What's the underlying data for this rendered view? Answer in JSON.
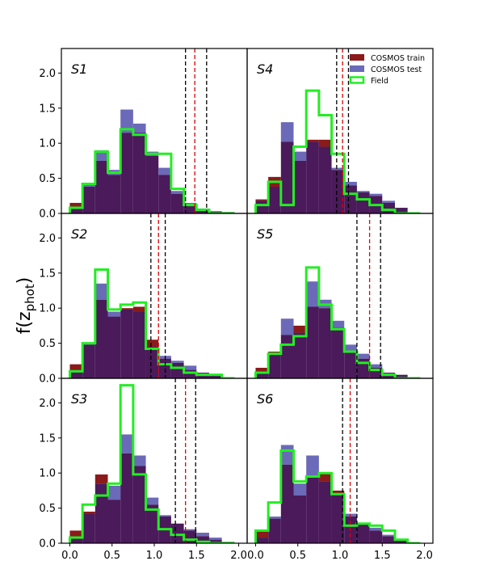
{
  "figure": {
    "ylabel": "f(z",
    "ylabel_sub": "phot",
    "ylabel_close": ")"
  },
  "legend": [
    {
      "label": "COSMOS train",
      "color": "#8b1a1a",
      "style": "fill"
    },
    {
      "label": "COSMOS test",
      "color": "#6a6ab8",
      "style": "fill"
    },
    {
      "label": "Field",
      "color": "#22ee22",
      "style": "step"
    }
  ],
  "chart_data": {
    "type": "histogram-grid",
    "xlim": [
      -0.1,
      2.1
    ],
    "ylim": [
      0,
      2.35
    ],
    "xticks": [
      "0.0",
      "0.5",
      "1.0",
      "1.5",
      "2.0"
    ],
    "yticks": [
      "0.0",
      "0.5",
      "1.0",
      "1.5",
      "2.0"
    ],
    "bin_edges": [
      0.0,
      0.15,
      0.3,
      0.45,
      0.6,
      0.75,
      0.9,
      1.05,
      1.2,
      1.35,
      1.5,
      1.65,
      1.8,
      1.95
    ],
    "colors": {
      "train": "#8b1a1a",
      "test": "#6a6ab8",
      "overlap": "#4a1a5a",
      "field": "#22ee22",
      "median": "#dd0000",
      "bounds": "#000000"
    },
    "panels": [
      {
        "label": "S1",
        "train": [
          0.15,
          0.38,
          0.75,
          0.55,
          1.15,
          1.15,
          0.82,
          0.55,
          0.28,
          0.12,
          0.05,
          0.03,
          0.02
        ],
        "test": [
          0.08,
          0.42,
          0.9,
          0.62,
          1.48,
          1.28,
          0.88,
          0.65,
          0.32,
          0.15,
          0.07,
          0.03,
          0.02
        ],
        "field": [
          0.08,
          0.42,
          0.88,
          0.58,
          1.2,
          1.12,
          0.85,
          0.85,
          0.35,
          0.12,
          0.05,
          0.0,
          0.0
        ],
        "median": 1.48,
        "lower": 1.37,
        "upper": 1.62
      },
      {
        "label": "S4",
        "train": [
          0.2,
          0.52,
          1.02,
          0.75,
          1.05,
          1.05,
          0.62,
          0.4,
          0.3,
          0.25,
          0.15,
          0.08,
          0.0
        ],
        "test": [
          0.18,
          0.38,
          1.3,
          0.88,
          1.02,
          0.95,
          0.65,
          0.45,
          0.32,
          0.28,
          0.18,
          0.08,
          0.0
        ],
        "field": [
          0.12,
          0.45,
          0.12,
          0.95,
          1.75,
          1.4,
          0.85,
          0.28,
          0.2,
          0.12,
          0.05,
          0.0,
          0.0
        ],
        "median": 1.03,
        "lower": 0.96,
        "upper": 1.1
      },
      {
        "label": "S2",
        "train": [
          0.2,
          0.48,
          1.12,
          0.88,
          1.0,
          1.02,
          0.55,
          0.28,
          0.22,
          0.12,
          0.08,
          0.05,
          0.0
        ],
        "test": [
          0.12,
          0.5,
          1.35,
          0.95,
          0.98,
          0.95,
          0.45,
          0.32,
          0.25,
          0.18,
          0.08,
          0.05,
          0.0
        ],
        "field": [
          0.1,
          0.5,
          1.55,
          0.98,
          1.05,
          1.08,
          0.42,
          0.2,
          0.15,
          0.08,
          0.05,
          0.05,
          0.0
        ],
        "median": 1.05,
        "lower": 0.96,
        "upper": 1.13
      },
      {
        "label": "S5",
        "train": [
          0.15,
          0.38,
          0.62,
          0.75,
          1.02,
          1.0,
          0.72,
          0.38,
          0.28,
          0.15,
          0.08,
          0.05,
          0.0
        ],
        "test": [
          0.08,
          0.35,
          0.85,
          0.65,
          1.38,
          1.12,
          0.82,
          0.48,
          0.35,
          0.2,
          0.08,
          0.05,
          0.0
        ],
        "field": [
          0.08,
          0.35,
          0.48,
          0.6,
          1.58,
          1.05,
          0.7,
          0.38,
          0.22,
          0.12,
          0.05,
          0.0,
          0.0
        ],
        "median": 1.35,
        "lower": 1.2,
        "upper": 1.48
      },
      {
        "label": "S3",
        "train": [
          0.18,
          0.45,
          0.98,
          0.62,
          1.28,
          1.1,
          0.55,
          0.38,
          0.28,
          0.18,
          0.1,
          0.05,
          0.02
        ],
        "test": [
          0.08,
          0.42,
          0.85,
          0.82,
          1.55,
          1.25,
          0.65,
          0.4,
          0.28,
          0.2,
          0.15,
          0.08,
          0.02
        ],
        "field": [
          0.08,
          0.55,
          0.68,
          0.85,
          2.25,
          0.98,
          0.48,
          0.2,
          0.12,
          0.05,
          0.02,
          0.0,
          0.0
        ],
        "median": 1.37,
        "lower": 1.25,
        "upper": 1.49
      },
      {
        "label": "S6",
        "train": [
          0.18,
          0.35,
          1.12,
          0.68,
          0.95,
          1.0,
          0.75,
          0.38,
          0.28,
          0.18,
          0.1,
          0.05,
          0.0
        ],
        "test": [
          0.08,
          0.38,
          1.4,
          0.85,
          1.25,
          0.88,
          0.7,
          0.42,
          0.28,
          0.22,
          0.12,
          0.05,
          0.0
        ],
        "field": [
          0.18,
          0.58,
          1.32,
          0.88,
          0.95,
          1.0,
          0.7,
          0.25,
          0.28,
          0.25,
          0.18,
          0.05,
          0.0
        ],
        "median": 1.12,
        "lower": 1.03,
        "upper": 1.2
      }
    ]
  }
}
